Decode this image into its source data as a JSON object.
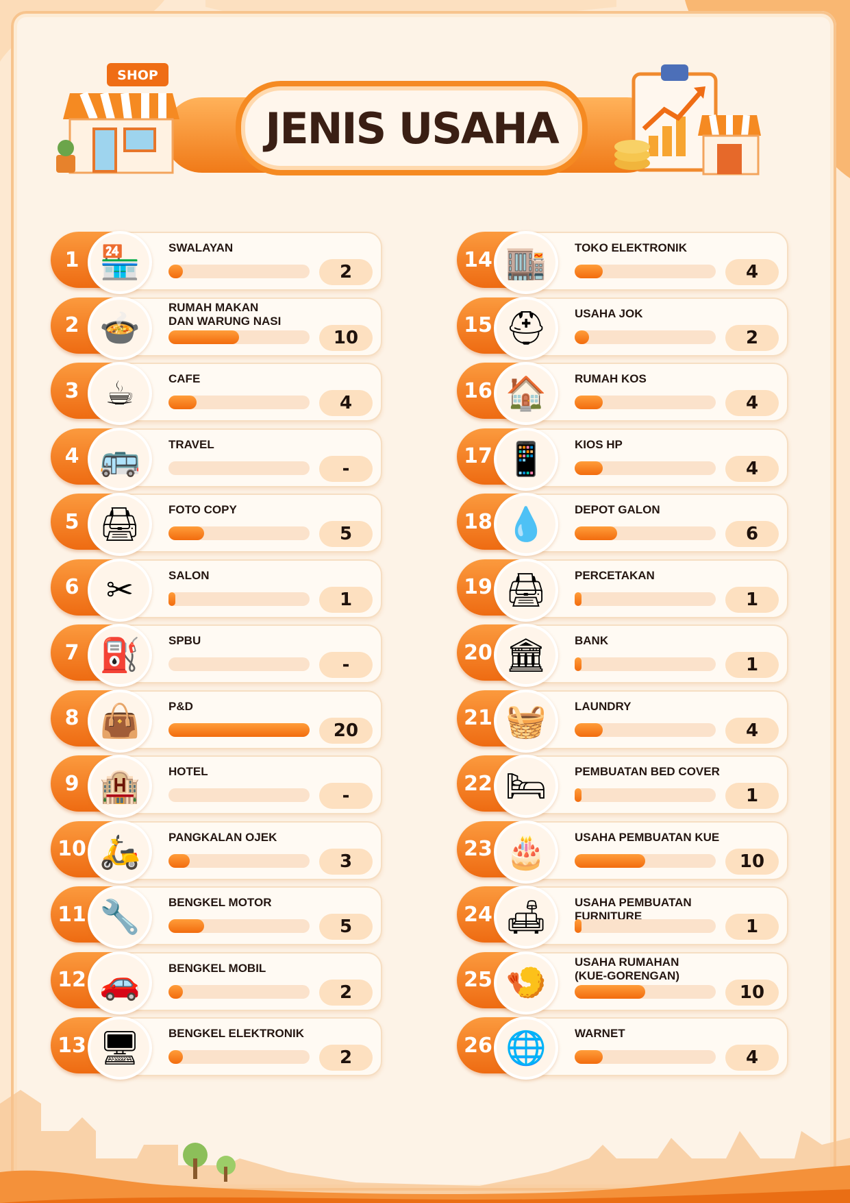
{
  "header": {
    "title": "JENIS USAHA",
    "shop_sign": "SHOP"
  },
  "colors": {
    "accent": "#f07a18",
    "title_text": "#3a1f14",
    "card_bg": "#fffaf3",
    "track": "#fbe2cb"
  },
  "bar_max_value": 20,
  "left_items": [
    {
      "no": "1",
      "label": "SWALAYAN",
      "value": "2",
      "amount": 2,
      "icon": "market-stall-icon",
      "glyph": "🏪"
    },
    {
      "no": "2",
      "label": "RUMAH MAKAN\nDAN WARUNG NASI",
      "value": "10",
      "amount": 10,
      "icon": "food-stall-icon",
      "glyph": "🍲"
    },
    {
      "no": "3",
      "label": "CAFE",
      "value": "4",
      "amount": 4,
      "icon": "coffee-cup-icon",
      "glyph": "☕"
    },
    {
      "no": "4",
      "label": "TRAVEL",
      "value": "-",
      "amount": 0,
      "icon": "travel-bus-icon",
      "glyph": "🚌"
    },
    {
      "no": "5",
      "label": "FOTO COPY",
      "value": "5",
      "amount": 5,
      "icon": "copier-icon",
      "glyph": "🖨"
    },
    {
      "no": "6",
      "label": "SALON",
      "value": "1",
      "amount": 1,
      "icon": "scissors-hairdryer-icon",
      "glyph": "✂"
    },
    {
      "no": "7",
      "label": "SPBU",
      "value": "-",
      "amount": 0,
      "icon": "fuel-pump-icon",
      "glyph": "⛽"
    },
    {
      "no": "8",
      "label": "P&D",
      "value": "20",
      "amount": 20,
      "icon": "shopping-bag-icon",
      "glyph": "👜"
    },
    {
      "no": "9",
      "label": "HOTEL",
      "value": "-",
      "amount": 0,
      "icon": "hotel-building-icon",
      "glyph": "🏨"
    },
    {
      "no": "10",
      "label": "PANGKALAN OJEK",
      "value": "3",
      "amount": 3,
      "icon": "motorcycle-icon",
      "glyph": "🛵"
    },
    {
      "no": "11",
      "label": "BENGKEL MOTOR",
      "value": "5",
      "amount": 5,
      "icon": "wrench-icon",
      "glyph": "🔧"
    },
    {
      "no": "12",
      "label": "BENGKEL MOBIL",
      "value": "2",
      "amount": 2,
      "icon": "car-icon",
      "glyph": "🚗"
    },
    {
      "no": "13",
      "label": "BENGKEL ELEKTRONIK",
      "value": "2",
      "amount": 2,
      "icon": "monitor-icon",
      "glyph": "🖥"
    }
  ],
  "right_items": [
    {
      "no": "14",
      "label": "TOKO ELEKTRONIK",
      "value": "4",
      "amount": 4,
      "icon": "electronics-store-icon",
      "glyph": "🏬"
    },
    {
      "no": "15",
      "label": "USAHA JOK",
      "value": "2",
      "amount": 2,
      "icon": "helmet-icon",
      "glyph": "⛑"
    },
    {
      "no": "16",
      "label": "RUMAH KOS",
      "value": "4",
      "amount": 4,
      "icon": "house-icon",
      "glyph": "🏠"
    },
    {
      "no": "17",
      "label": "KIOS HP",
      "value": "4",
      "amount": 4,
      "icon": "phone-icon",
      "glyph": "📱"
    },
    {
      "no": "18",
      "label": "DEPOT GALON",
      "value": "6",
      "amount": 6,
      "icon": "water-gallon-icon",
      "glyph": "💧"
    },
    {
      "no": "19",
      "label": "PERCETAKAN",
      "value": "1",
      "amount": 1,
      "icon": "printer-icon",
      "glyph": "🖨"
    },
    {
      "no": "20",
      "label": "BANK",
      "value": "1",
      "amount": 1,
      "icon": "bank-icon",
      "glyph": "🏛"
    },
    {
      "no": "21",
      "label": "LAUNDRY",
      "value": "4",
      "amount": 4,
      "icon": "washing-machine-icon",
      "glyph": "🧺"
    },
    {
      "no": "22",
      "label": "PEMBUATAN BED COVER",
      "value": "1",
      "amount": 1,
      "icon": "bed-icon",
      "glyph": "🛏"
    },
    {
      "no": "23",
      "label": "USAHA PEMBUATAN KUE",
      "value": "10",
      "amount": 10,
      "icon": "cake-icon",
      "glyph": "🎂"
    },
    {
      "no": "24",
      "label": "USAHA PEMBUATAN FURNITURE",
      "value": "1",
      "amount": 1,
      "icon": "armchair-icon",
      "glyph": "🛋"
    },
    {
      "no": "25",
      "label": "USAHA RUMAHAN\n(KUE-GORENGAN)",
      "value": "10",
      "amount": 10,
      "icon": "fried-snacks-icon",
      "glyph": "🍤"
    },
    {
      "no": "26",
      "label": "WARNET",
      "value": "4",
      "amount": 4,
      "icon": "globe-wifi-icon",
      "glyph": "🌐"
    }
  ]
}
